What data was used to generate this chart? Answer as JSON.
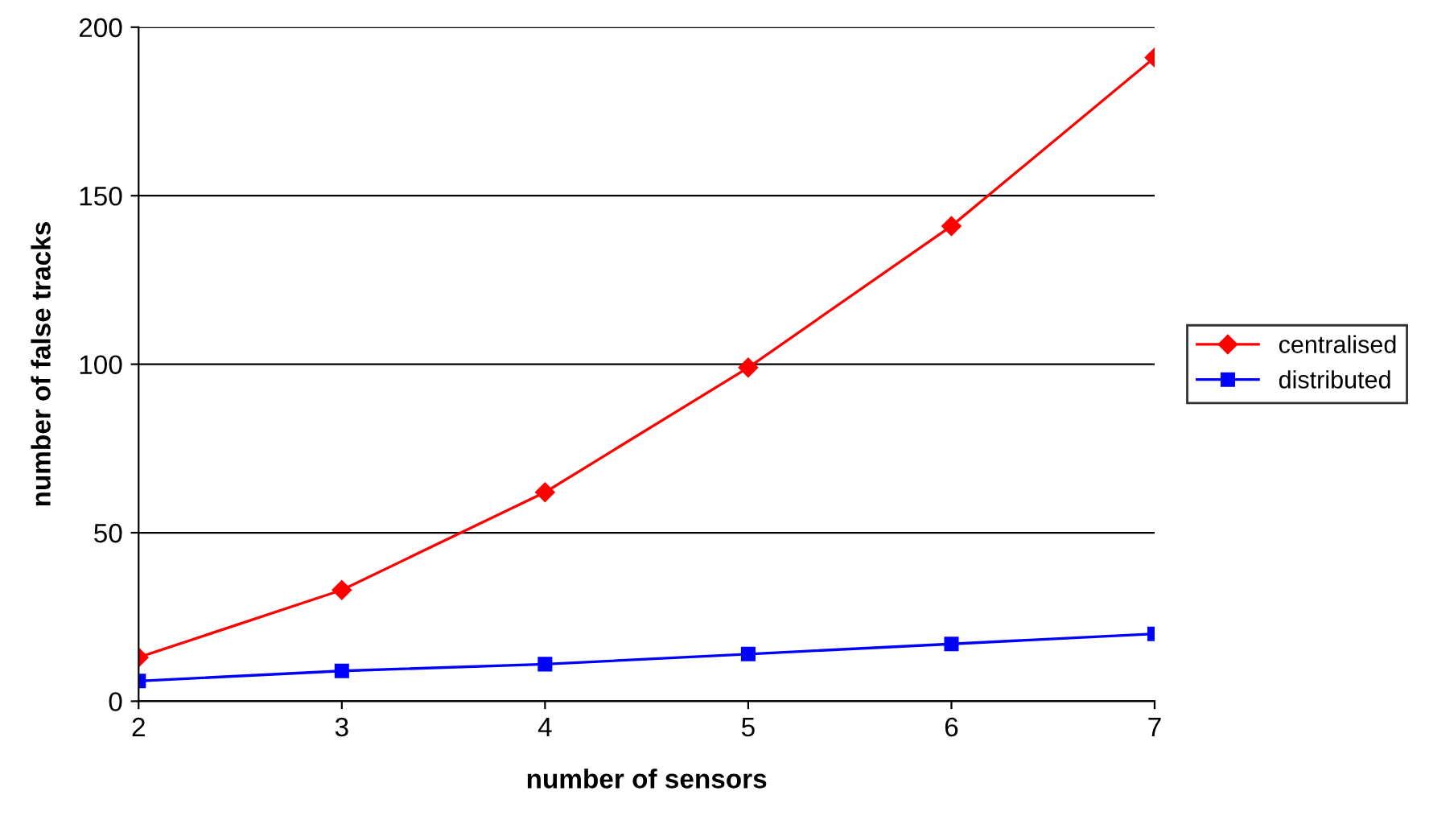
{
  "chart_data": {
    "type": "line",
    "xlabel": "number of sensors",
    "ylabel": "number of false tracks",
    "x": [
      2,
      3,
      4,
      5,
      6,
      7
    ],
    "series": [
      {
        "name": "centralised",
        "color": "#ff0000",
        "marker": "diamond",
        "values": [
          13,
          33,
          62,
          99,
          141,
          191
        ]
      },
      {
        "name": "distributed",
        "color": "#0000ff",
        "marker": "square",
        "values": [
          6,
          9,
          11,
          14,
          17,
          20
        ]
      }
    ],
    "xlim": [
      2,
      7
    ],
    "xticks": [
      2,
      3,
      4,
      5,
      6,
      7
    ],
    "ylim": [
      0,
      200
    ],
    "yticks": [
      0,
      50,
      100,
      150,
      200
    ],
    "grid": "y",
    "legend": "right",
    "line_style": "solid"
  }
}
